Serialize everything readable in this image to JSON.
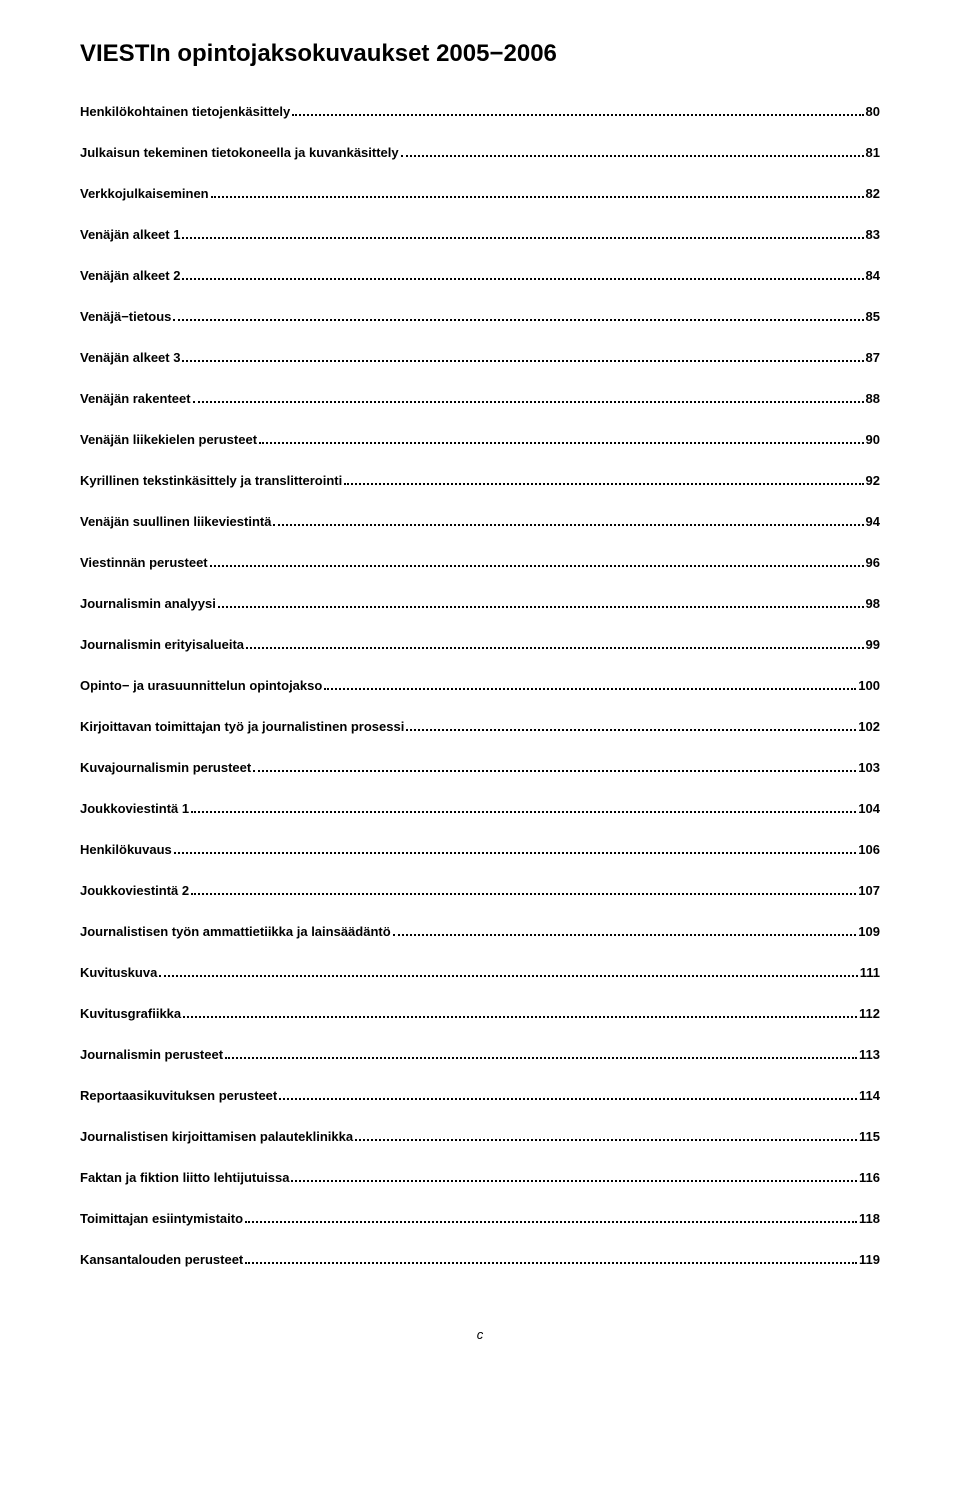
{
  "title": "VIESTIn opintojaksokuvaukset 2005−2006",
  "toc": [
    {
      "label": "Henkilökohtainen tietojenkäsittely",
      "page": "80"
    },
    {
      "label": "Julkaisun tekeminen tietokoneella ja kuvankäsittely",
      "page": "81"
    },
    {
      "label": "Verkkojulkaiseminen",
      "page": "82"
    },
    {
      "label": "Venäjän alkeet 1",
      "page": "83"
    },
    {
      "label": "Venäjän alkeet 2",
      "page": "84"
    },
    {
      "label": "Venäjä−tietous",
      "page": "85"
    },
    {
      "label": "Venäjän alkeet 3",
      "page": "87"
    },
    {
      "label": "Venäjän rakenteet",
      "page": "88"
    },
    {
      "label": "Venäjän liikekielen perusteet",
      "page": "90"
    },
    {
      "label": "Kyrillinen tekstinkäsittely ja translitterointi",
      "page": "92"
    },
    {
      "label": "Venäjän suullinen liikeviestintä",
      "page": "94"
    },
    {
      "label": "Viestinnän perusteet",
      "page": "96"
    },
    {
      "label": "Journalismin analyysi",
      "page": "98"
    },
    {
      "label": "Journalismin erityisalueita",
      "page": "99"
    },
    {
      "label": "Opinto− ja urasuunnittelun opintojakso",
      "page": "100"
    },
    {
      "label": "Kirjoittavan toimittajan työ ja journalistinen prosessi",
      "page": "102"
    },
    {
      "label": "Kuvajournalismin perusteet",
      "page": "103"
    },
    {
      "label": "Joukkoviestintä 1",
      "page": "104"
    },
    {
      "label": "Henkilökuvaus",
      "page": "106"
    },
    {
      "label": "Joukkoviestintä 2",
      "page": "107"
    },
    {
      "label": "Journalistisen työn ammattietiikka ja lainsäädäntö",
      "page": "109"
    },
    {
      "label": "Kuvituskuva",
      "page": "111"
    },
    {
      "label": "Kuvitusgrafiikka",
      "page": "112"
    },
    {
      "label": "Journalismin perusteet",
      "page": "113"
    },
    {
      "label": "Reportaasikuvituksen perusteet",
      "page": "114"
    },
    {
      "label": "Journalistisen kirjoittamisen palauteklinikka",
      "page": "115"
    },
    {
      "label": "Faktan ja fiktion liitto lehtijutuissa",
      "page": "116"
    },
    {
      "label": "Toimittajan esiintymistaito",
      "page": "118"
    },
    {
      "label": "Kansantalouden perusteet",
      "page": "119"
    }
  ],
  "page_letter": "c"
}
